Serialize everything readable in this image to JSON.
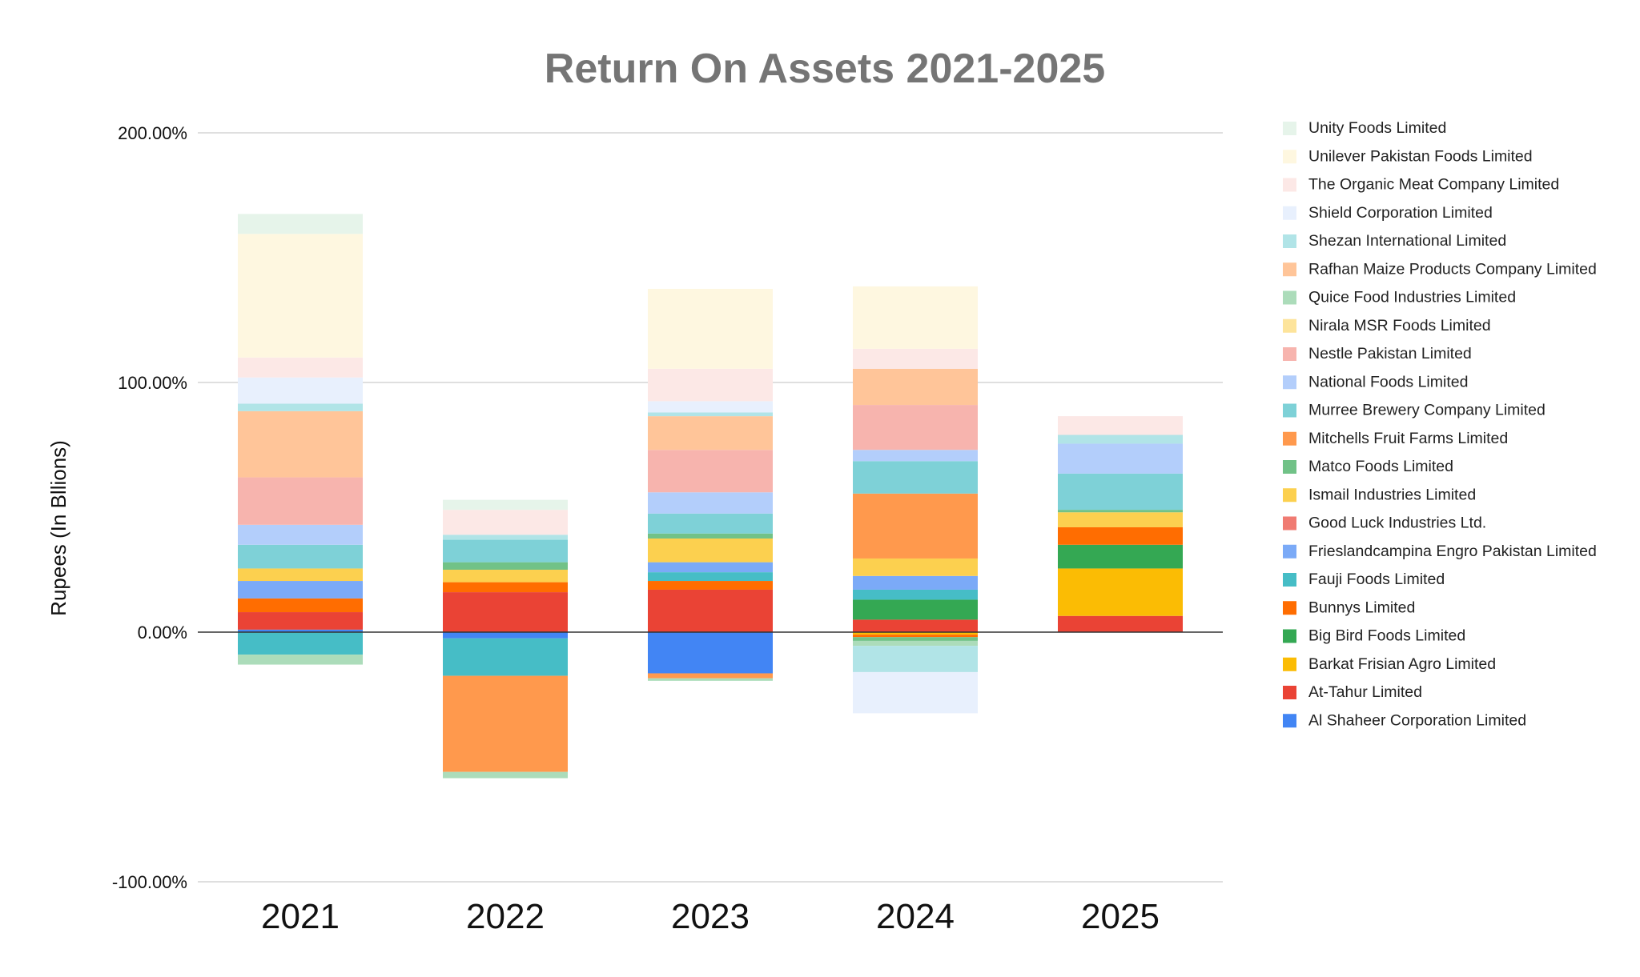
{
  "chart_data": {
    "type": "bar",
    "stacked": true,
    "title": "Return On Assets 2021-2025",
    "xlabel": "",
    "ylabel": "Rupees (In Bllions)",
    "categories": [
      "2021",
      "2022",
      "2023",
      "2024",
      "2025"
    ],
    "ylim": [
      -100,
      200
    ],
    "yticks": [
      {
        "value": 200,
        "label": "200.00%"
      },
      {
        "value": 100,
        "label": "100.00%"
      },
      {
        "value": 0,
        "label": "0.00%"
      },
      {
        "value": -100,
        "label": "-100.00%"
      }
    ],
    "grid": true,
    "legend_position": "right",
    "series": [
      {
        "name": "Al Shaheer Corporation Limited",
        "color": "#4285F4",
        "values": [
          1,
          -2.5,
          -16.5,
          0,
          0
        ]
      },
      {
        "name": "At-Tahur Limited",
        "color": "#EA4335",
        "values": [
          7,
          16,
          17,
          5,
          6.5
        ]
      },
      {
        "name": "Barkat Frisian Agro Limited",
        "color": "#FBBC04",
        "values": [
          0,
          0,
          0,
          -1,
          19
        ]
      },
      {
        "name": "Big Bird Foods Limited",
        "color": "#34A853",
        "values": [
          0,
          0,
          0,
          8,
          9.5
        ]
      },
      {
        "name": "Bunnys Limited",
        "color": "#FF6D01",
        "values": [
          5.5,
          4,
          3.5,
          -1,
          7
        ]
      },
      {
        "name": "Fauji Foods Limited",
        "color": "#46BDC6",
        "values": [
          -9,
          -15,
          3.5,
          4,
          0
        ]
      },
      {
        "name": "Frieslandcampina Engro Pakistan Limited",
        "color": "#7BAAF7",
        "values": [
          7,
          0,
          4,
          5.5,
          0
        ]
      },
      {
        "name": "Good Luck Industries Ltd.",
        "color": "#F07B72",
        "values": [
          0,
          0,
          0,
          0,
          0
        ]
      },
      {
        "name": "Ismail Industries Limited",
        "color": "#FCD04F",
        "values": [
          5,
          5,
          9.5,
          7,
          6
        ]
      },
      {
        "name": "Matco Foods Limited",
        "color": "#71C287",
        "values": [
          0,
          3,
          2,
          -1.5,
          1
        ]
      },
      {
        "name": "Mitchells Fruit Farms Limited",
        "color": "#FF994D",
        "values": [
          0,
          -38.5,
          -2,
          26,
          0
        ]
      },
      {
        "name": "Murree Brewery Company Limited",
        "color": "#7ED1D7",
        "values": [
          9.5,
          9,
          8,
          13,
          14.5
        ]
      },
      {
        "name": "National Foods Limited",
        "color": "#B3CEFB",
        "values": [
          8,
          0,
          8.5,
          4.5,
          12
        ]
      },
      {
        "name": "Nestle Pakistan Limited",
        "color": "#F7B4AE",
        "values": [
          19,
          0,
          17,
          18,
          0
        ]
      },
      {
        "name": "Nirala MSR Foods Limited",
        "color": "#FDE49B",
        "values": [
          0,
          0,
          0,
          0,
          0
        ]
      },
      {
        "name": "Quice Food Industries Limited",
        "color": "#ACDCBA",
        "values": [
          -4,
          -2.5,
          -1,
          -2,
          0
        ]
      },
      {
        "name": "Rafhan Maize Products Company Limited",
        "color": "#FFC599",
        "values": [
          26.5,
          0,
          13.5,
          14.5,
          0
        ]
      },
      {
        "name": "Shezan International Limited",
        "color": "#B1E4E7",
        "values": [
          3,
          2,
          1.5,
          -10.5,
          3.5
        ]
      },
      {
        "name": "Shield Corporation Limited",
        "color": "#E8F0FD",
        "values": [
          10.5,
          0,
          4.5,
          -16.5,
          0
        ]
      },
      {
        "name": "The Organic Meat Company Limited",
        "color": "#FCE8E6",
        "values": [
          8,
          10,
          13,
          8,
          7.5
        ]
      },
      {
        "name": "Unilever Pakistan Foods Limited",
        "color": "#FEF7E0",
        "values": [
          49.5,
          0,
          32,
          25,
          0
        ]
      },
      {
        "name": "Unity Foods Limited",
        "color": "#E6F4EA",
        "values": [
          8,
          4,
          0,
          0,
          0
        ]
      }
    ]
  }
}
